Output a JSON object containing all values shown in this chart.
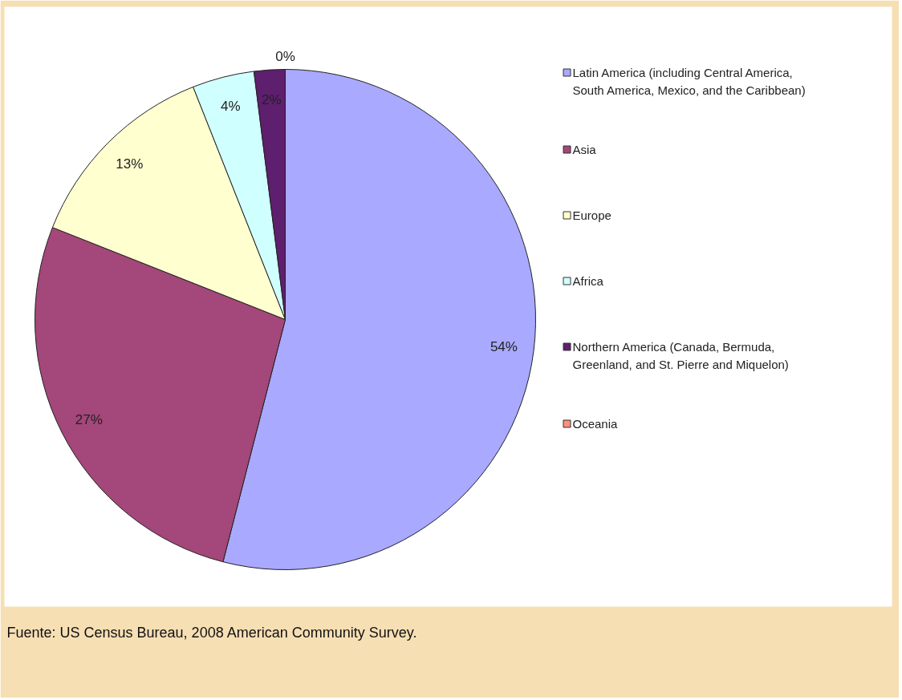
{
  "chart_data": {
    "type": "pie",
    "categories": [
      "Latin America (including Central America, South America, Mexico, and the Caribbean)",
      "Asia",
      "Europe",
      "Africa",
      "Northern America (Canada, Bermuda, Greenland, and St. Pierre and Miquelon)",
      "Oceania"
    ],
    "values": [
      54,
      27,
      13,
      4,
      2,
      0
    ],
    "colors": [
      "#a9a9ff",
      "#a4477a",
      "#ffffd0",
      "#d0ffff",
      "#5e1f6e",
      "#ff9080"
    ],
    "value_labels": [
      "54%",
      "27%",
      "13%",
      "4%",
      "2%",
      "0%"
    ],
    "legend": "right",
    "annotations": [
      "Fuente: US Census Bureau, 2008 American Community Survey."
    ]
  }
}
